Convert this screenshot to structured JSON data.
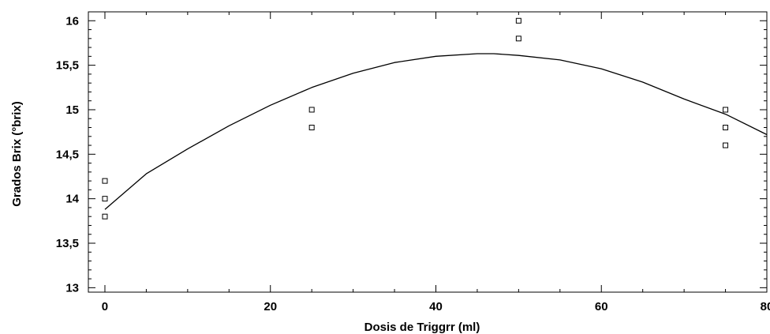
{
  "chart_data": {
    "type": "scatter",
    "title": "",
    "xlabel": "Dosis de Triggrr (ml)",
    "ylabel": "Grados Brix (°brix)",
    "xlim": [
      -2,
      80
    ],
    "ylim": [
      12.95,
      16.1
    ],
    "x_ticks": [
      0,
      20,
      40,
      60,
      80
    ],
    "y_ticks": [
      13,
      13.5,
      14,
      14.5,
      15,
      15.5,
      16
    ],
    "x_tick_labels": [
      "0",
      "20",
      "40",
      "60",
      "80"
    ],
    "y_tick_labels": [
      "13",
      "13,5",
      "14",
      "14,5",
      "15",
      "15,5",
      "16"
    ],
    "grid": false,
    "series": [
      {
        "kind": "points",
        "marker": "open-square",
        "x": [
          0,
          0,
          0,
          25,
          25,
          50,
          50,
          75,
          75,
          75
        ],
        "y": [
          14.2,
          14.0,
          13.8,
          15.0,
          14.8,
          16.0,
          15.8,
          15.0,
          14.8,
          14.6
        ]
      },
      {
        "kind": "fitted-curve",
        "x": [
          0,
          5,
          10,
          15,
          20,
          25,
          30,
          35,
          40,
          45,
          47,
          50,
          55,
          60,
          65,
          70,
          75,
          80
        ],
        "y": [
          13.88,
          14.28,
          14.56,
          14.82,
          15.05,
          15.25,
          15.41,
          15.53,
          15.6,
          15.63,
          15.63,
          15.61,
          15.56,
          15.46,
          15.31,
          15.12,
          14.95,
          14.72
        ]
      }
    ]
  }
}
